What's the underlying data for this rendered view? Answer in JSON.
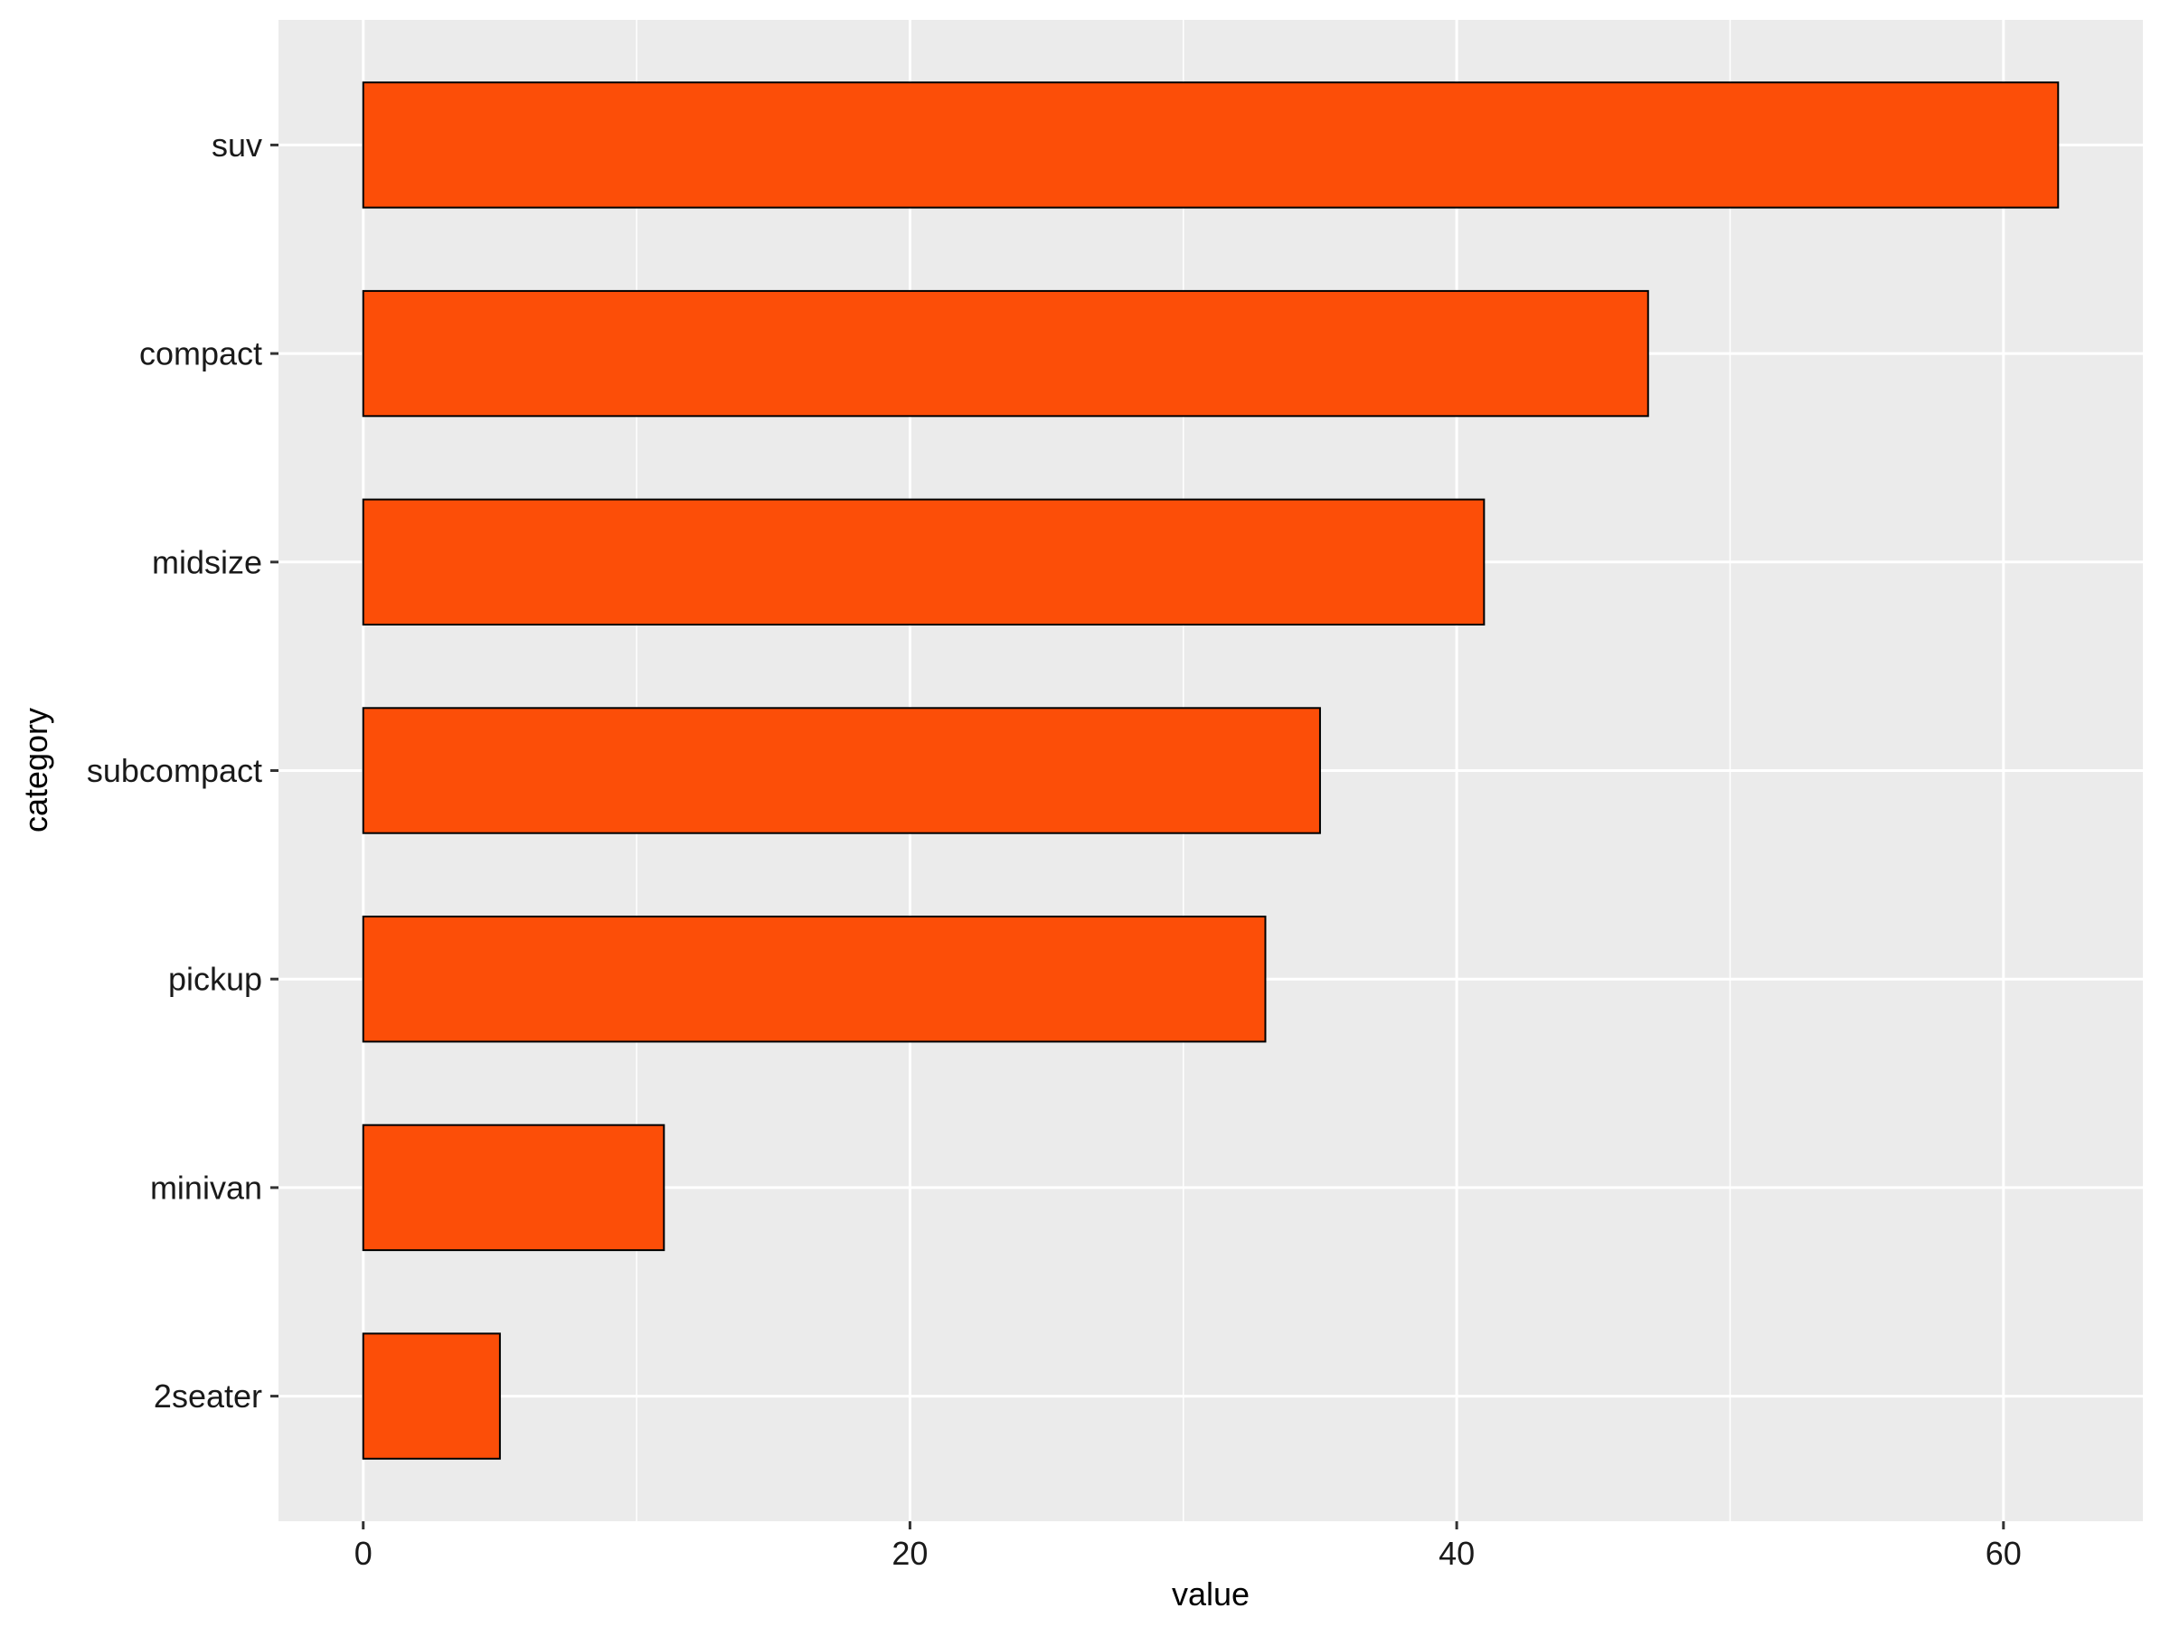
{
  "chart_data": {
    "type": "bar",
    "orientation": "horizontal",
    "categories": [
      "suv",
      "compact",
      "midsize",
      "subcompact",
      "pickup",
      "minivan",
      "2seater"
    ],
    "values": [
      62,
      47,
      41,
      35,
      33,
      11,
      5
    ],
    "xlabel": "value",
    "ylabel": "category",
    "xlim": [
      -3.1,
      65.1
    ],
    "x_ticks": [
      0,
      20,
      40,
      60
    ],
    "x_tick_labels": [
      "0",
      "20",
      "40",
      "60"
    ],
    "grid": true,
    "legend": "none",
    "colors": {
      "bar_fill": "#FC4E08",
      "bar_stroke": "#000000",
      "panel_background": "#EBEBEB",
      "grid_line": "#FFFFFF"
    }
  }
}
